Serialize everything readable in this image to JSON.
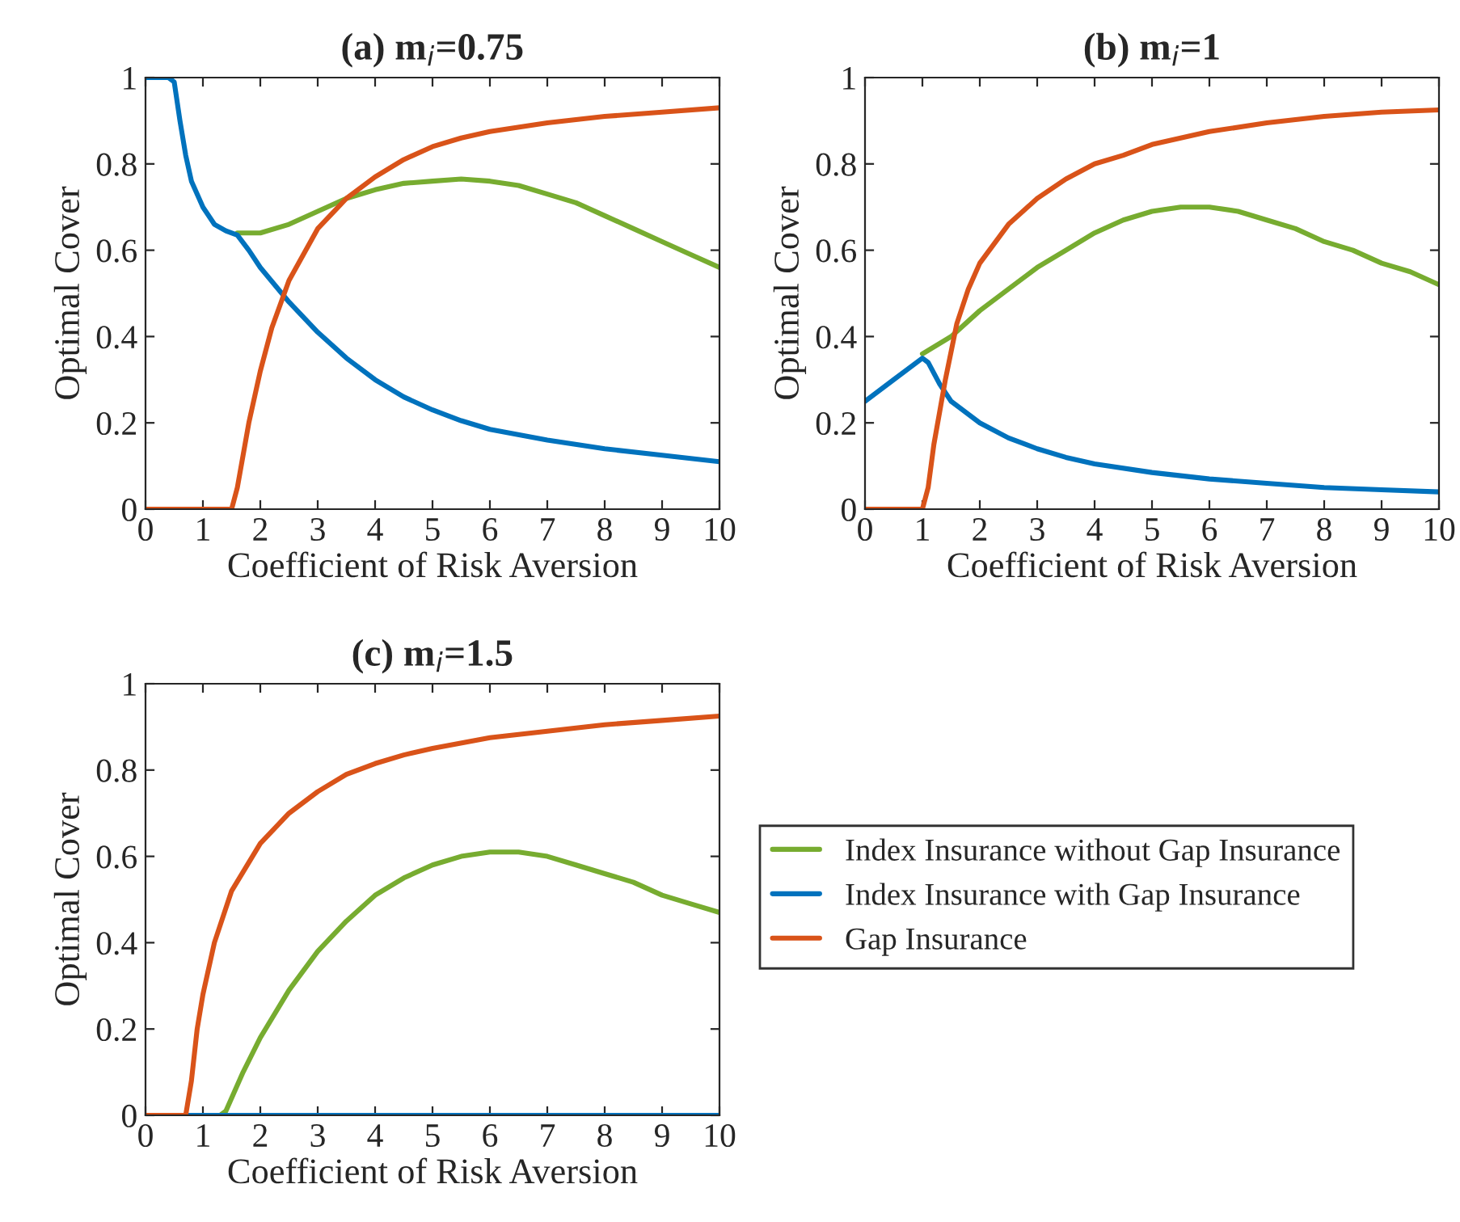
{
  "chart_data": [
    {
      "type": "line",
      "title": "(a) m$_{i}$=0.75",
      "xlabel": "Coefficient of Risk Aversion",
      "ylabel": "Optimal Cover",
      "xlim": [
        0,
        10
      ],
      "ylim": [
        0,
        1
      ],
      "xticks": [
        0,
        1,
        2,
        3,
        4,
        5,
        6,
        7,
        8,
        9,
        10
      ],
      "yticks": [
        0,
        0.2,
        0.4,
        0.6,
        0.8,
        1
      ],
      "grid": false,
      "legend": false,
      "marker": "none",
      "line_style": "solid",
      "series": [
        {
          "color": "#77ac30",
          "x": [
            1.6,
            2,
            2.5,
            3,
            3.5,
            4,
            4.5,
            5,
            5.5,
            6,
            6.5,
            7,
            7.5,
            8,
            8.5,
            9,
            9.5,
            10
          ],
          "values": [
            0.64,
            0.64,
            0.66,
            0.69,
            0.72,
            0.74,
            0.755,
            0.76,
            0.765,
            0.76,
            0.75,
            0.73,
            0.71,
            0.68,
            0.65,
            0.62,
            0.59,
            0.56
          ]
        },
        {
          "color": "#0072bd",
          "x": [
            0,
            0.4,
            0.5,
            0.6,
            0.7,
            0.8,
            1,
            1.2,
            1.4,
            1.6,
            1.8,
            2,
            2.5,
            3,
            3.5,
            4,
            4.5,
            5,
            5.5,
            6,
            7,
            8,
            9,
            10
          ],
          "values": [
            1,
            1,
            0.99,
            0.9,
            0.82,
            0.76,
            0.7,
            0.66,
            0.645,
            0.635,
            0.6,
            0.56,
            0.48,
            0.41,
            0.35,
            0.3,
            0.26,
            0.23,
            0.205,
            0.185,
            0.16,
            0.14,
            0.125,
            0.11
          ]
        },
        {
          "color": "#d95319",
          "x": [
            0,
            1.5,
            1.6,
            1.8,
            2,
            2.2,
            2.5,
            3,
            3.5,
            4,
            4.5,
            5,
            5.5,
            6,
            7,
            8,
            9,
            10
          ],
          "values": [
            0,
            0,
            0.05,
            0.2,
            0.32,
            0.42,
            0.53,
            0.65,
            0.72,
            0.77,
            0.81,
            0.84,
            0.86,
            0.875,
            0.895,
            0.91,
            0.92,
            0.93
          ]
        }
      ]
    },
    {
      "type": "line",
      "title": "(b) m$_{i}$=1",
      "xlabel": "Coefficient of Risk Aversion",
      "ylabel": "Optimal Cover",
      "xlim": [
        0,
        10
      ],
      "ylim": [
        0,
        1
      ],
      "xticks": [
        0,
        1,
        2,
        3,
        4,
        5,
        6,
        7,
        8,
        9,
        10
      ],
      "yticks": [
        0,
        0.2,
        0.4,
        0.6,
        0.8,
        1
      ],
      "grid": false,
      "legend": false,
      "marker": "none",
      "line_style": "solid",
      "series": [
        {
          "color": "#77ac30",
          "x": [
            1,
            1.5,
            2,
            2.5,
            3,
            3.5,
            4,
            4.5,
            5,
            5.5,
            6,
            6.5,
            7,
            7.5,
            8,
            8.5,
            9,
            9.5,
            10
          ],
          "values": [
            0.36,
            0.4,
            0.46,
            0.51,
            0.56,
            0.6,
            0.64,
            0.67,
            0.69,
            0.7,
            0.7,
            0.69,
            0.67,
            0.65,
            0.62,
            0.6,
            0.57,
            0.55,
            0.52
          ]
        },
        {
          "color": "#0072bd",
          "x": [
            0,
            0.5,
            1,
            1.1,
            1.3,
            1.5,
            2,
            2.5,
            3,
            3.5,
            4,
            5,
            6,
            7,
            8,
            9,
            10
          ],
          "values": [
            0.25,
            0.3,
            0.35,
            0.34,
            0.29,
            0.25,
            0.2,
            0.165,
            0.14,
            0.12,
            0.105,
            0.085,
            0.07,
            0.06,
            0.05,
            0.045,
            0.04
          ]
        },
        {
          "color": "#d95319",
          "x": [
            0,
            1,
            1.1,
            1.2,
            1.4,
            1.6,
            1.8,
            2,
            2.5,
            3,
            3.5,
            4,
            4.5,
            5,
            5.5,
            6,
            7,
            8,
            9,
            10
          ],
          "values": [
            0,
            0,
            0.05,
            0.15,
            0.3,
            0.43,
            0.51,
            0.57,
            0.66,
            0.72,
            0.765,
            0.8,
            0.82,
            0.845,
            0.86,
            0.875,
            0.895,
            0.91,
            0.92,
            0.925
          ]
        }
      ]
    },
    {
      "type": "line",
      "title": "(c) m$_{i}$=1.5",
      "xlabel": "Coefficient of Risk Aversion",
      "ylabel": "Optimal Cover",
      "xlim": [
        0,
        10
      ],
      "ylim": [
        0,
        1
      ],
      "xticks": [
        0,
        1,
        2,
        3,
        4,
        5,
        6,
        7,
        8,
        9,
        10
      ],
      "yticks": [
        0,
        0.2,
        0.4,
        0.6,
        0.8,
        1
      ],
      "grid": false,
      "legend": "right",
      "marker": "none",
      "line_style": "solid",
      "series": [
        {
          "name": "Index Insurance without Gap Insurance",
          "color": "#77ac30",
          "x": [
            1.3,
            1.4,
            1.7,
            2,
            2.5,
            3,
            3.5,
            4,
            4.5,
            5,
            5.5,
            6,
            6.5,
            7,
            7.5,
            8,
            8.5,
            9,
            9.5,
            10
          ],
          "values": [
            0,
            0.01,
            0.1,
            0.18,
            0.29,
            0.38,
            0.45,
            0.51,
            0.55,
            0.58,
            0.6,
            0.61,
            0.61,
            0.6,
            0.58,
            0.56,
            0.54,
            0.51,
            0.49,
            0.47
          ]
        },
        {
          "name": "Index Insurance with Gap Insurance",
          "color": "#0072bd",
          "x": [
            0,
            10
          ],
          "values": [
            0,
            0
          ]
        },
        {
          "name": "Gap Insurance",
          "color": "#d95319",
          "x": [
            0,
            0.7,
            0.8,
            0.9,
            1,
            1.2,
            1.5,
            2,
            2.5,
            3,
            3.5,
            4,
            4.5,
            5,
            6,
            7,
            8,
            9,
            10
          ],
          "values": [
            0,
            0,
            0.08,
            0.2,
            0.28,
            0.4,
            0.52,
            0.63,
            0.7,
            0.75,
            0.79,
            0.815,
            0.835,
            0.85,
            0.875,
            0.89,
            0.905,
            0.915,
            0.925
          ]
        }
      ]
    }
  ]
}
